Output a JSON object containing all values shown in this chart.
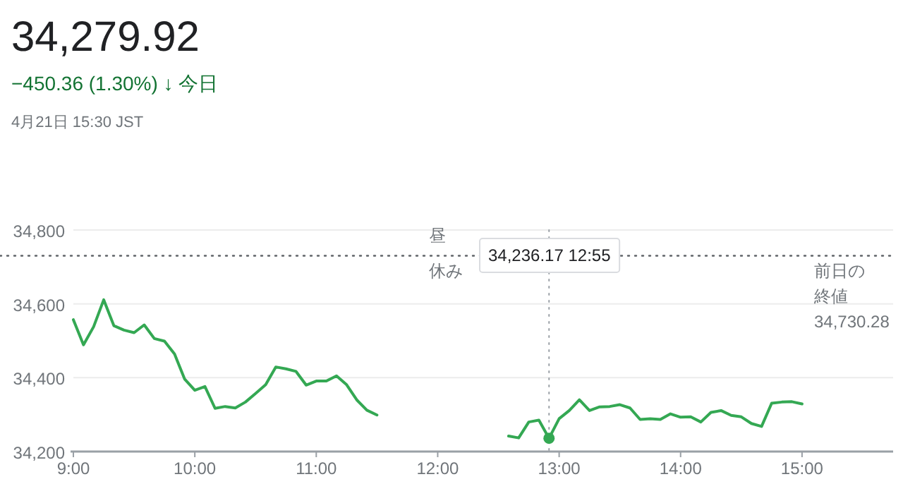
{
  "chart_data": {
    "type": "line",
    "title": "34,279.92",
    "subtitle": "−450.36 (1.30%) ↓ 今日",
    "annotations": [
      "4月21日 15:30 JST",
      "昼",
      "休み",
      "34,236.17  12:55"
    ],
    "series": [
      {
        "color": "#34a853",
        "x": [
          9,
          9.0833,
          9.1667,
          9.25,
          9.3333,
          9.4167,
          9.5,
          9.5833,
          9.6667,
          9.75,
          9.8333,
          9.9167,
          10,
          10.0833,
          10.1667,
          10.25,
          10.3333,
          10.4167,
          10.5,
          10.5833,
          10.6667,
          10.75,
          10.8333,
          10.9167,
          11,
          11.0833,
          11.1667,
          11.25,
          11.3333,
          11.4167,
          11.5
        ],
        "values": [
          34557,
          34489,
          34538,
          34611,
          34541,
          34529,
          34522,
          34543,
          34506,
          34499,
          34464,
          34396,
          34366,
          34376,
          34317,
          34322,
          34318,
          34334,
          34357,
          34381,
          34429,
          34424,
          34417,
          34380,
          34391,
          34391,
          34405,
          34381,
          34340,
          34312,
          34299
        ]
      },
      {
        "color": "#34a853",
        "x": [
          12.5833,
          12.6667,
          12.75,
          12.8333,
          12.9167,
          13,
          13.0833,
          13.1667,
          13.25,
          13.3333,
          13.4167,
          13.5,
          13.5833,
          13.6667,
          13.75,
          13.8333,
          13.9167,
          14,
          14.0833,
          14.1667,
          14.25,
          14.3333,
          14.4167,
          14.5,
          14.5833,
          14.6667,
          14.75,
          14.8333,
          14.9167,
          15
        ],
        "values": [
          34242,
          34237,
          34280,
          34285,
          34236,
          34289,
          34311,
          34340,
          34311,
          34321,
          34322,
          34327,
          34318,
          34287,
          34289,
          34287,
          34302,
          34293,
          34294,
          34280,
          34306,
          34311,
          34298,
          34294,
          34276,
          34268,
          34331,
          34334,
          34335,
          34329
        ]
      }
    ],
    "xlim": [
      9,
      15.75
    ],
    "ylim": [
      34200,
      34800
    ],
    "xticks": [
      {
        "value": 9,
        "label": "9:00"
      },
      {
        "value": 10,
        "label": "10:00"
      },
      {
        "value": 11,
        "label": "11:00"
      },
      {
        "value": 12,
        "label": "12:00"
      },
      {
        "value": 13,
        "label": "13:00"
      },
      {
        "value": 14,
        "label": "14:00"
      },
      {
        "value": 15,
        "label": "15:00"
      }
    ],
    "yticks": [
      {
        "value": 34200,
        "label": "34,200"
      },
      {
        "value": 34400,
        "label": "34,400"
      },
      {
        "value": 34600,
        "label": "34,600"
      },
      {
        "value": 34800,
        "label": "34,800"
      }
    ],
    "ref_lines": [
      {
        "axis": "y",
        "value": 34730.28,
        "label": "前日の終値 34,730.28",
        "line_style": "dotted"
      },
      {
        "axis": "x",
        "value": 12.9167,
        "line_style": "dotted"
      }
    ],
    "grid": "y",
    "marker": "none",
    "line_style": "solid"
  }
}
